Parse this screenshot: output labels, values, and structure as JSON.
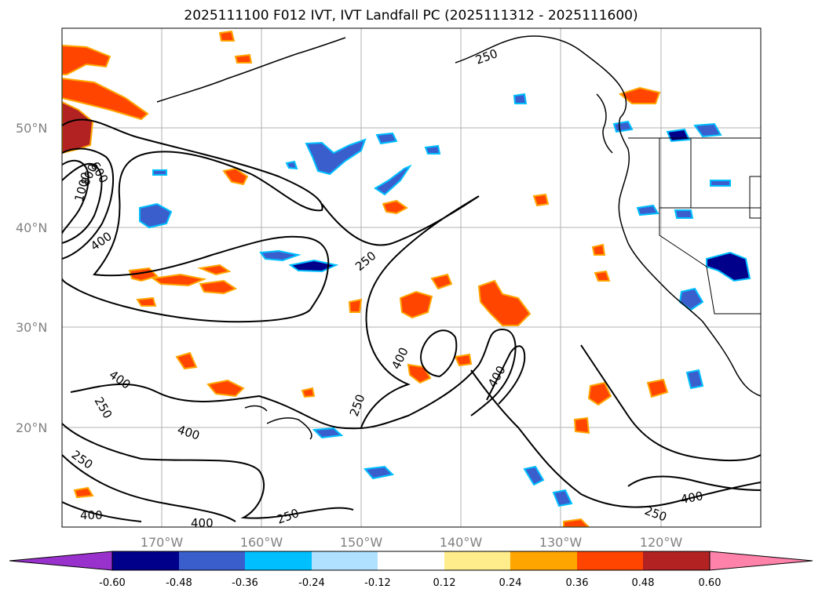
{
  "title": "2025111100 F012 IVT, IVT Landfall PC (2025111312 - 2025111600)",
  "axes": {
    "lat_labels": [
      "50°N",
      "40°N",
      "30°N",
      "20°N"
    ],
    "lon_labels": [
      "170°W",
      "160°W",
      "150°W",
      "140°W",
      "130°W",
      "120°W"
    ]
  },
  "contour_labels": [
    "250",
    "400",
    "600",
    "800",
    "1000",
    "250",
    "400",
    "400",
    "250",
    "250",
    "400",
    "400",
    "250",
    "400",
    "400",
    "250",
    "400",
    "250",
    "400",
    "400"
  ],
  "colorbar": {
    "colors": [
      "#9932cc",
      "#00008b",
      "#3a5fcd",
      "#00bfff",
      "#b0e2ff",
      "#ffffff",
      "#ffec8b",
      "#ffa500",
      "#ff4500",
      "#b22222",
      "#ff82ab"
    ],
    "ticks": [
      "-0.60",
      "-0.48",
      "-0.36",
      "-0.24",
      "-0.12",
      "0.12",
      "0.24",
      "0.36",
      "0.48",
      "0.60"
    ]
  }
}
